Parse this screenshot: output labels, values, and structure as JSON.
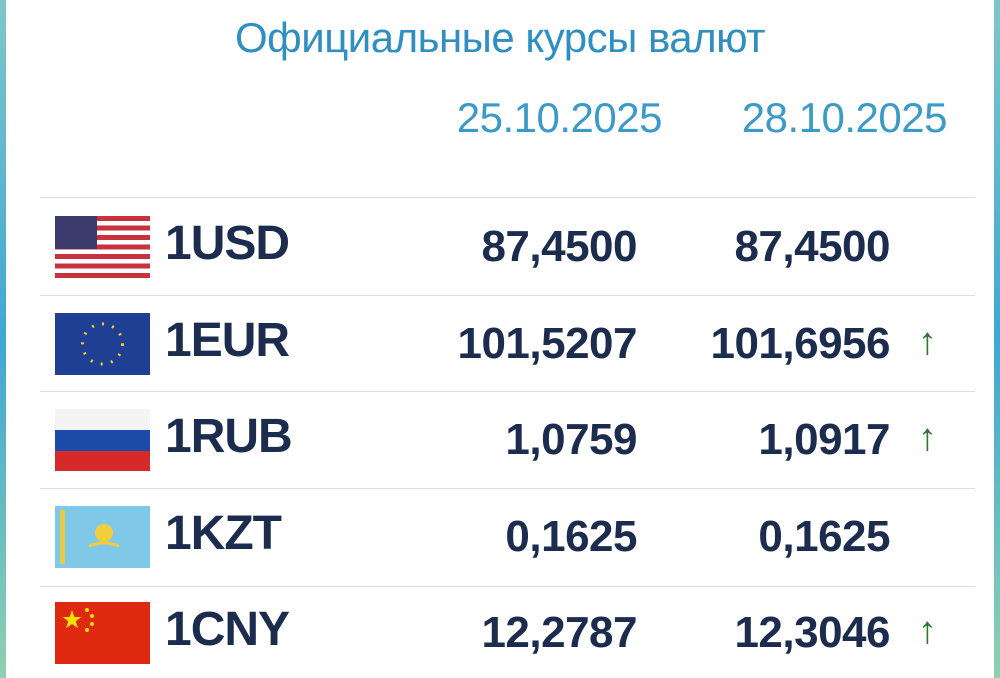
{
  "title": "Официальные курсы валют",
  "header": {
    "dates": [
      "25.10.2025",
      "28.10.2025"
    ]
  },
  "table": {
    "rows": [
      {
        "currency": "1USD",
        "values": [
          "87,4500",
          "87,4500"
        ]
      },
      {
        "currency": "1EUR",
        "values": [
          "101,5207",
          "101,6956"
        ],
        "trend": "↑"
      },
      {
        "currency": "1RUB",
        "values": [
          "1,0759",
          "1,0917"
        ],
        "trend": "↑"
      },
      {
        "currency": "1KZT",
        "values": [
          "0,1625",
          "0,1625"
        ]
      },
      {
        "currency": "1CNY",
        "values": [
          "12,2787",
          "12,3046"
        ],
        "trend": "↑"
      }
    ]
  }
}
